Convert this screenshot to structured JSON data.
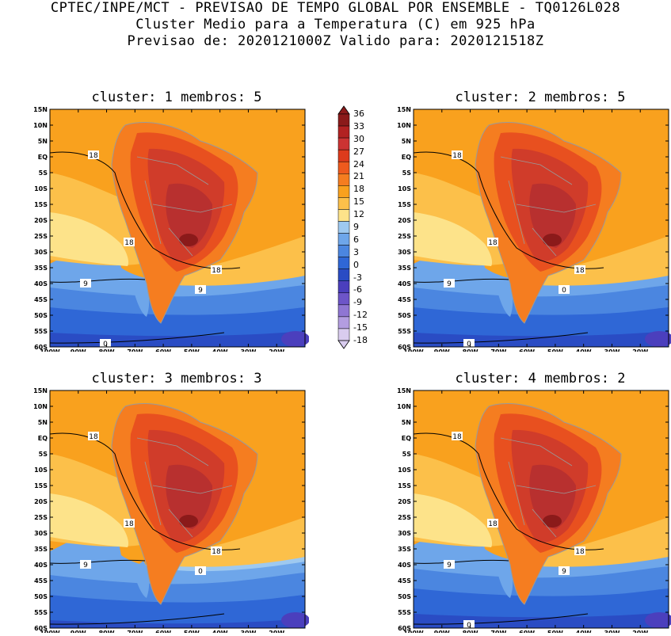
{
  "header": {
    "line1": "CPTEC/INPE/MCT - PREVISAO DE TEMPO GLOBAL POR ENSEMBLE - TQ0126L028",
    "line2": "Cluster Medio para a Temperatura (C) em 925 hPa",
    "line3": "Previsao de: 2020121000Z   Valido para: 2020121518Z"
  },
  "panels": [
    {
      "title": "cluster: 1   membros: 5",
      "contours": [
        "18",
        "18",
        "18",
        "9",
        "9",
        "0"
      ]
    },
    {
      "title": "cluster: 2   membros: 5",
      "contours": [
        "18",
        "18",
        "18",
        "9",
        "0",
        "0"
      ]
    },
    {
      "title": "cluster: 3   membros: 3",
      "contours": [
        "18",
        "18",
        "18",
        "9",
        "0"
      ]
    },
    {
      "title": "cluster: 4   membros: 2",
      "contours": [
        "18",
        "18",
        "18",
        "9",
        "9",
        "0"
      ]
    }
  ],
  "lat_labels": [
    "15N",
    "10N",
    "5N",
    "EQ",
    "5S",
    "10S",
    "15S",
    "20S",
    "25S",
    "30S",
    "35S",
    "40S",
    "45S",
    "50S",
    "55S",
    "60S"
  ],
  "lon_labels": [
    "100W",
    "90W",
    "80W",
    "70W",
    "60W",
    "50W",
    "40W",
    "30W",
    "20W"
  ],
  "colorbar": {
    "labels": [
      "36",
      "33",
      "30",
      "27",
      "24",
      "21",
      "18",
      "15",
      "12",
      "9",
      "6",
      "3",
      "0",
      "-3",
      "-6",
      "-9",
      "-12",
      "-15",
      "-18"
    ],
    "colors": [
      "#8b1a1a",
      "#b22222",
      "#cc3333",
      "#dd3b1c",
      "#ee5a1e",
      "#f57d20",
      "#f9a11e",
      "#fcc04a",
      "#fde38a",
      "#9ec9f0",
      "#6ea6ea",
      "#4b86e0",
      "#2f67d6",
      "#2a4cc4",
      "#4b3fbd",
      "#6d55c8",
      "#8f76d3",
      "#b39de0",
      "#d9ccef"
    ]
  }
}
